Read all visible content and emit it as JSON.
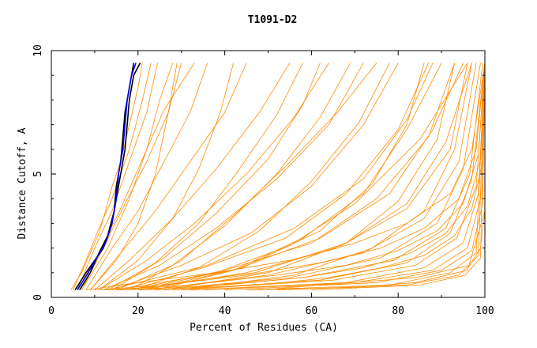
{
  "chart_data": {
    "type": "line",
    "title": "T1091-D2",
    "xlabel": "Percent of Residues (CA)",
    "ylabel": "Distance Cutoff, A",
    "xlim": [
      0,
      100
    ],
    "ylim": [
      0,
      10
    ],
    "x_ticks": [
      "0",
      "20",
      "40",
      "60",
      "80",
      "100"
    ],
    "y_ticks": [
      "0",
      "5",
      "10"
    ],
    "grid": false,
    "colors": {
      "models": "#ff8c00",
      "highlight_black": "#000000",
      "highlight_blue": "#0000ff"
    },
    "series": [
      {
        "x": [
          5.5,
          8,
          10,
          12,
          13.5,
          14.5,
          15,
          16,
          16.5,
          17,
          18,
          19
        ],
        "y": [
          0.3,
          1,
          1.5,
          2,
          2.7,
          3.5,
          4.5,
          5.5,
          6.5,
          7.5,
          8.5,
          9.5
        ],
        "color": "#000000"
      },
      {
        "x": [
          6.5,
          9,
          11,
          13,
          14.5,
          15,
          16,
          17,
          17.5,
          18,
          19,
          20.5
        ],
        "y": [
          0.3,
          1,
          1.8,
          2.5,
          3.5,
          4,
          5,
          6,
          7,
          8,
          9,
          9.5
        ],
        "color": "#000000"
      },
      {
        "x": [
          6,
          8.5,
          10.5,
          12.5,
          14,
          15,
          15.5,
          16.5,
          17,
          17.5,
          18.5,
          19.5
        ],
        "y": [
          0.3,
          1,
          1.6,
          2.2,
          3,
          4,
          5,
          6,
          7,
          8,
          9,
          9.5
        ],
        "color": "#0000ff"
      },
      {
        "x": [
          4.5,
          7,
          9,
          11,
          12.5,
          14,
          16,
          18,
          20,
          21
        ],
        "y": [
          0.3,
          1,
          1.8,
          2.6,
          3.5,
          4.5,
          5.5,
          7,
          8.5,
          9.5
        ],
        "color": "#ff8c00"
      },
      {
        "x": [
          5,
          8,
          11,
          14,
          18,
          21,
          23
        ],
        "y": [
          0.3,
          1.5,
          2.8,
          4,
          6,
          8,
          9.5
        ],
        "color": "#ff8c00"
      },
      {
        "x": [
          6,
          10,
          14,
          18,
          22,
          24.5
        ],
        "y": [
          0.3,
          2,
          3.5,
          5.5,
          7.5,
          9.5
        ],
        "color": "#ff8c00"
      },
      {
        "x": [
          7,
          12,
          17,
          22,
          27,
          30
        ],
        "y": [
          0.3,
          2,
          3.8,
          5.5,
          7.5,
          9.5
        ],
        "color": "#ff8c00"
      },
      {
        "x": [
          8,
          14,
          20,
          26,
          32,
          36
        ],
        "y": [
          0.3,
          2,
          3.5,
          5.5,
          7.5,
          9.5
        ],
        "color": "#ff8c00"
      },
      {
        "x": [
          9,
          16,
          24,
          32,
          40,
          45
        ],
        "y": [
          0.3,
          1.8,
          3.5,
          5.5,
          7.5,
          9.5
        ],
        "color": "#ff8c00"
      },
      {
        "x": [
          10,
          18,
          28,
          38,
          48,
          55
        ],
        "y": [
          0.3,
          1.5,
          3.2,
          5.2,
          7.5,
          9.5
        ],
        "color": "#ff8c00"
      },
      {
        "x": [
          11,
          22,
          33,
          45,
          56,
          64
        ],
        "y": [
          0.3,
          1.5,
          3,
          5,
          7.3,
          9.5
        ],
        "color": "#ff8c00"
      },
      {
        "x": [
          12,
          25,
          38,
          52,
          64,
          72
        ],
        "y": [
          0.3,
          1.3,
          2.8,
          4.8,
          7,
          9.5
        ],
        "color": "#ff8c00"
      },
      {
        "x": [
          14,
          30,
          46,
          60,
          72,
          80
        ],
        "y": [
          0.3,
          1.3,
          2.6,
          4.5,
          7,
          9.5
        ],
        "color": "#ff8c00"
      },
      {
        "x": [
          16,
          35,
          54,
          68,
          80,
          87
        ],
        "y": [
          0.3,
          1.2,
          2.4,
          4.2,
          6.8,
          9.5
        ],
        "color": "#ff8c00"
      },
      {
        "x": [
          18,
          40,
          60,
          75,
          87,
          93
        ],
        "y": [
          0.3,
          1.1,
          2.2,
          4,
          6.5,
          9.5
        ],
        "color": "#ff8c00"
      },
      {
        "x": [
          20,
          45,
          66,
          82,
          92,
          96
        ],
        "y": [
          0.3,
          1,
          2,
          3.6,
          6,
          9.5
        ],
        "color": "#ff8c00"
      },
      {
        "x": [
          22,
          50,
          72,
          86,
          94,
          98
        ],
        "y": [
          0.3,
          0.9,
          1.8,
          3.2,
          5.5,
          9.5
        ],
        "color": "#ff8c00"
      },
      {
        "x": [
          24,
          55,
          76,
          89,
          95,
          99
        ],
        "y": [
          0.3,
          0.8,
          1.6,
          3,
          5.2,
          9.5
        ],
        "color": "#ff8c00"
      },
      {
        "x": [
          26,
          58,
          79,
          91,
          96.5,
          99.5
        ],
        "y": [
          0.3,
          0.8,
          1.5,
          2.8,
          5,
          9.5
        ],
        "color": "#ff8c00"
      },
      {
        "x": [
          28,
          62,
          82,
          92,
          97,
          100
        ],
        "y": [
          0.3,
          0.7,
          1.4,
          2.6,
          4.8,
          9.5
        ],
        "color": "#ff8c00"
      },
      {
        "x": [
          30,
          65,
          84,
          93.5,
          98,
          100
        ],
        "y": [
          0.3,
          0.7,
          1.3,
          2.4,
          4.5,
          9.5
        ],
        "color": "#ff8c00"
      },
      {
        "x": [
          32,
          68,
          86,
          95,
          98.5,
          100
        ],
        "y": [
          0.3,
          0.6,
          1.2,
          2.2,
          4.2,
          9.5
        ],
        "color": "#ff8c00"
      },
      {
        "x": [
          35,
          70,
          88,
          96,
          99,
          100
        ],
        "y": [
          0.3,
          0.6,
          1.1,
          2,
          4,
          9.5
        ],
        "color": "#ff8c00"
      },
      {
        "x": [
          40,
          75,
          90,
          97,
          99.5,
          100
        ],
        "y": [
          0.3,
          0.6,
          1.1,
          1.9,
          3.8,
          9.5
        ],
        "color": "#ff8c00"
      },
      {
        "x": [
          45,
          78,
          92,
          98,
          100
        ],
        "y": [
          0.3,
          0.5,
          1,
          1.8,
          9.5
        ],
        "color": "#ff8c00"
      },
      {
        "x": [
          52,
          82,
          94,
          98.5,
          100
        ],
        "y": [
          0.3,
          0.5,
          0.9,
          1.7,
          9.5
        ],
        "color": "#ff8c00"
      },
      {
        "x": [
          60,
          85,
          95.5,
          99,
          100
        ],
        "y": [
          0.3,
          0.5,
          0.9,
          1.6,
          9.5
        ],
        "color": "#ff8c00"
      },
      {
        "x": [
          8,
          20,
          38,
          55,
          70,
          82,
          92,
          97,
          100
        ],
        "y": [
          0.3,
          0.6,
          1,
          1.5,
          2.2,
          3,
          4.2,
          6,
          9.5
        ],
        "color": "#ff8c00"
      },
      {
        "x": [
          10,
          26,
          45,
          62,
          76,
          86,
          94,
          98,
          100
        ],
        "y": [
          0.3,
          0.5,
          0.9,
          1.4,
          2,
          2.8,
          4,
          6,
          9.5
        ],
        "color": "#ff8c00"
      },
      {
        "x": [
          12,
          32,
          52,
          68,
          80,
          89,
          95,
          98.5,
          100
        ],
        "y": [
          0.3,
          0.5,
          0.9,
          1.3,
          1.9,
          2.7,
          3.8,
          5.8,
          9.5
        ],
        "color": "#ff8c00"
      },
      {
        "x": [
          15,
          40,
          58,
          72,
          83,
          91,
          96,
          99,
          100
        ],
        "y": [
          0.3,
          0.5,
          0.8,
          1.2,
          1.8,
          2.6,
          3.7,
          5.6,
          9.5
        ],
        "color": "#ff8c00"
      },
      {
        "x": [
          20,
          48,
          64,
          76,
          86,
          93,
          97,
          99.5,
          100
        ],
        "y": [
          0.3,
          0.5,
          0.8,
          1.2,
          1.7,
          2.5,
          3.6,
          5.5,
          9.5
        ],
        "color": "#ff8c00"
      },
      {
        "x": [
          13,
          36,
          56,
          72,
          82,
          88
        ],
        "y": [
          0.3,
          1.3,
          2.8,
          4.8,
          7.2,
          9.5
        ],
        "color": "#ff8c00"
      },
      {
        "x": [
          15,
          42,
          62,
          78,
          88,
          95
        ],
        "y": [
          0.3,
          1.1,
          2.4,
          4.2,
          6.8,
          9.5
        ],
        "color": "#ff8c00"
      },
      {
        "x": [
          17,
          47,
          68,
          82,
          91,
          97
        ],
        "y": [
          0.3,
          1,
          2.2,
          3.8,
          6.3,
          9.5
        ],
        "color": "#ff8c00"
      },
      {
        "x": [
          9,
          15,
          20,
          24,
          27,
          29
        ],
        "y": [
          0.3,
          1.5,
          3,
          5,
          7.5,
          9.5
        ],
        "color": "#ff8c00"
      },
      {
        "x": [
          11,
          20,
          28,
          34,
          39,
          42
        ],
        "y": [
          0.3,
          1.5,
          3.2,
          5.2,
          7.5,
          9.5
        ],
        "color": "#ff8c00"
      },
      {
        "x": [
          13,
          24,
          34,
          43,
          52,
          58
        ],
        "y": [
          0.3,
          1.4,
          3,
          5.1,
          7.4,
          9.5
        ],
        "color": "#ff8c00"
      },
      {
        "x": [
          15,
          28,
          40,
          52,
          62,
          69
        ],
        "y": [
          0.3,
          1.3,
          2.9,
          5,
          7.3,
          9.5
        ],
        "color": "#ff8c00"
      },
      {
        "x": [
          19,
          34,
          48,
          60,
          71,
          78
        ],
        "y": [
          0.3,
          1.2,
          2.7,
          4.7,
          7.1,
          9.5
        ],
        "color": "#ff8c00"
      },
      {
        "x": [
          7,
          13,
          18,
          22,
          25,
          28
        ],
        "y": [
          0.3,
          2,
          4,
          6,
          8,
          9.5
        ],
        "color": "#ff8c00"
      },
      {
        "x": [
          6,
          11,
          16,
          21,
          26,
          33
        ],
        "y": [
          0.3,
          1.8,
          3.6,
          5.6,
          7.6,
          9.5
        ],
        "color": "#ff8c00"
      },
      {
        "x": [
          14,
          26,
          38,
          50,
          58,
          62
        ],
        "y": [
          0.3,
          1.6,
          3.4,
          5.6,
          7.8,
          9.5
        ],
        "color": "#ff8c00"
      },
      {
        "x": [
          18,
          30,
          42,
          54,
          66,
          75
        ],
        "y": [
          0.3,
          1.5,
          3.3,
          5.3,
          7.5,
          9.5
        ],
        "color": "#ff8c00"
      },
      {
        "x": [
          24,
          42,
          58,
          72,
          82,
          90
        ],
        "y": [
          0.3,
          1.1,
          2.4,
          4.2,
          6.8,
          9.5
        ],
        "color": "#ff8c00"
      },
      {
        "x": [
          20,
          38,
          55,
          70,
          85,
          96
        ],
        "y": [
          0.3,
          1,
          2.1,
          3.8,
          6.4,
          9.5
        ],
        "color": "#ff8c00"
      },
      {
        "x": [
          46,
          70,
          84,
          96,
          100
        ],
        "y": [
          0.3,
          0.4,
          0.6,
          1.1,
          3.5
        ],
        "color": "#ff8c00"
      },
      {
        "x": [
          48,
          84,
          96.5,
          99,
          100
        ],
        "y": [
          0.3,
          0.8,
          1.3,
          2,
          3.5
        ],
        "color": "#ff8c00"
      },
      {
        "x": [
          22,
          44,
          62,
          74,
          82,
          86
        ],
        "y": [
          0.3,
          1.2,
          2.7,
          4.6,
          7,
          9.5
        ],
        "color": "#ff8c00"
      },
      {
        "x": [
          26,
          50,
          68,
          80,
          89,
          93
        ],
        "y": [
          0.3,
          1,
          2.2,
          3.9,
          6.4,
          9.5
        ],
        "color": "#ff8c00"
      },
      {
        "x": [
          30,
          56,
          74,
          86,
          93,
          97
        ],
        "y": [
          0.3,
          0.9,
          2,
          3.5,
          6,
          9.5
        ],
        "color": "#ff8c00"
      }
    ]
  }
}
